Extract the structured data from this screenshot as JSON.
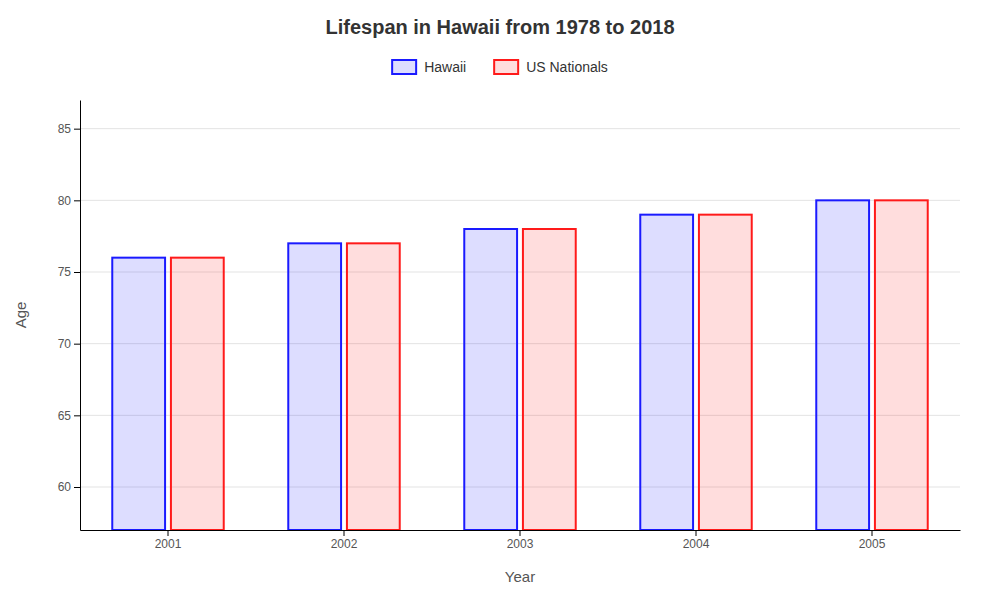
{
  "chart_data": {
    "type": "bar",
    "title": "Lifespan in Hawaii from 1978 to 2018",
    "x_label": "Year",
    "y_label": "Age",
    "categories": [
      "2001",
      "2002",
      "2003",
      "2004",
      "2005"
    ],
    "series": [
      {
        "name": "Hawaii",
        "color": "#1a1aff",
        "values": [
          76,
          77,
          78,
          79,
          80
        ]
      },
      {
        "name": "US Nationals",
        "color": "#ff1a1a",
        "values": [
          76,
          77,
          78,
          79,
          80
        ]
      }
    ],
    "ylim": [
      57,
      87
    ],
    "yticks": [
      60,
      65,
      70,
      75,
      80,
      85
    ],
    "grid": true,
    "legend": "top"
  }
}
